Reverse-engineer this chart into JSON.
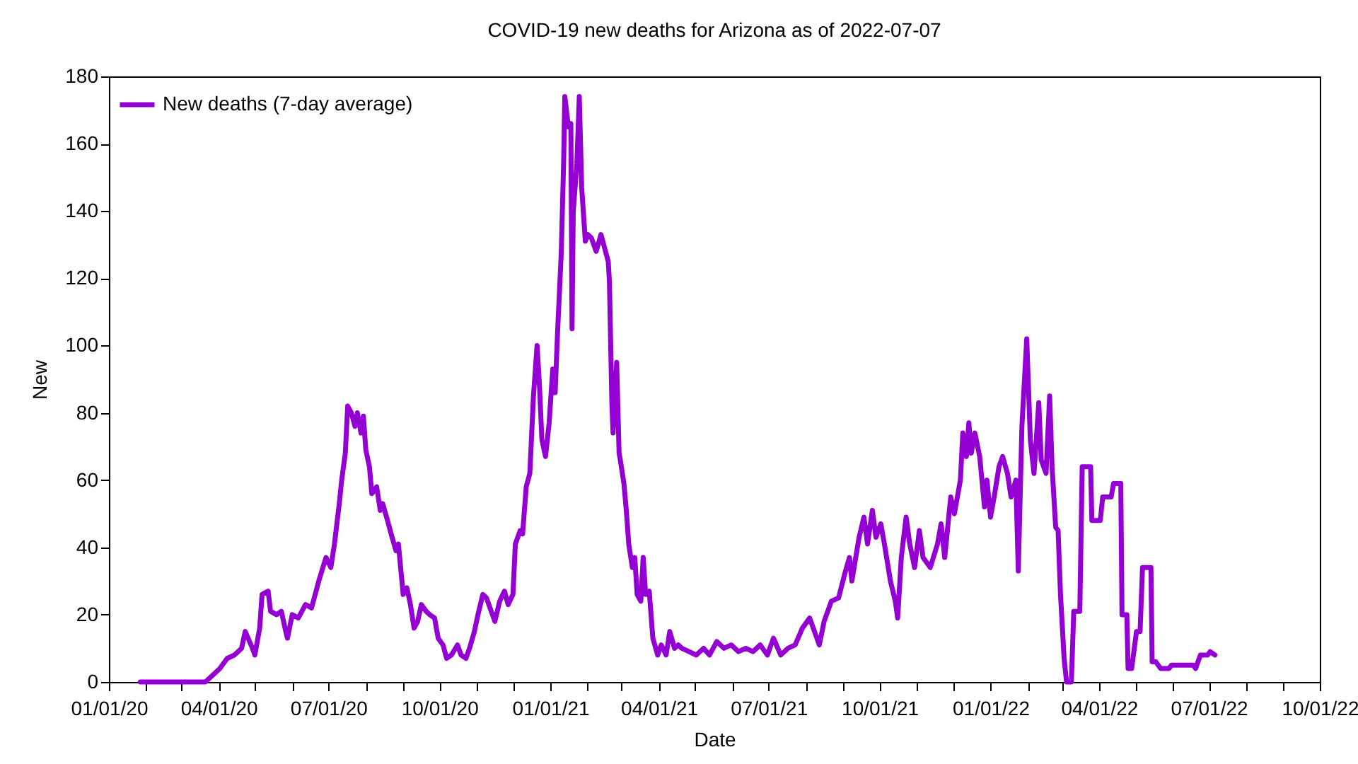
{
  "chart_data": {
    "type": "line",
    "title": "COVID-19 new deaths for Arizona as of 2022-07-07",
    "xlabel": "Date",
    "ylabel": "New",
    "x": [
      "2020-01-27",
      "2020-03-21",
      "2020-03-27",
      "2020-04-02",
      "2020-04-08",
      "2020-04-14",
      "2020-04-20",
      "2020-04-23",
      "2020-04-29",
      "2020-05-01",
      "2020-05-05",
      "2020-05-07",
      "2020-05-12",
      "2020-05-14",
      "2020-05-19",
      "2020-05-23",
      "2020-05-26",
      "2020-05-28",
      "2020-06-01",
      "2020-06-06",
      "2020-06-12",
      "2020-06-17",
      "2020-06-23",
      "2020-06-29",
      "2020-07-03",
      "2020-07-06",
      "2020-07-10",
      "2020-07-12",
      "2020-07-15",
      "2020-07-17",
      "2020-07-20",
      "2020-07-23",
      "2020-07-25",
      "2020-07-28",
      "2020-07-30",
      "2020-08-01",
      "2020-08-04",
      "2020-08-06",
      "2020-08-10",
      "2020-08-13",
      "2020-08-15",
      "2020-08-19",
      "2020-08-22",
      "2020-08-26",
      "2020-08-28",
      "2020-09-01",
      "2020-09-04",
      "2020-09-07",
      "2020-09-10",
      "2020-09-13",
      "2020-09-16",
      "2020-09-20",
      "2020-09-23",
      "2020-09-27",
      "2020-09-30",
      "2020-10-04",
      "2020-10-07",
      "2020-10-11",
      "2020-10-16",
      "2020-10-19",
      "2020-10-23",
      "2020-10-26",
      "2020-10-30",
      "2020-11-02",
      "2020-11-06",
      "2020-11-09",
      "2020-11-13",
      "2020-11-16",
      "2020-11-20",
      "2020-11-24",
      "2020-11-27",
      "2020-12-01",
      "2020-12-03",
      "2020-12-07",
      "2020-12-09",
      "2020-12-12",
      "2020-12-15",
      "2020-12-18",
      "2020-12-21",
      "2020-12-23",
      "2020-12-25",
      "2020-12-28",
      "2020-12-31",
      "2021-01-03",
      "2021-01-05",
      "2021-01-07",
      "2021-01-10",
      "2021-01-12",
      "2021-01-13",
      "2021-01-16",
      "2021-01-18",
      "2021-01-19",
      "2021-01-20",
      "2021-01-23",
      "2021-01-25",
      "2021-01-27",
      "2021-01-30",
      "2021-02-01",
      "2021-02-04",
      "2021-02-08",
      "2021-02-12",
      "2021-02-15",
      "2021-02-18",
      "2021-02-19",
      "2021-02-21",
      "2021-02-22",
      "2021-02-25",
      "2021-02-27",
      "2021-02-28",
      "2021-03-03",
      "2021-03-05",
      "2021-03-07",
      "2021-03-10",
      "2021-03-12",
      "2021-03-14",
      "2021-03-17",
      "2021-03-19",
      "2021-03-21",
      "2021-03-24",
      "2021-03-27",
      "2021-03-31",
      "2021-04-03",
      "2021-04-07",
      "2021-04-10",
      "2021-04-14",
      "2021-04-17",
      "2021-04-20",
      "2021-04-26",
      "2021-05-02",
      "2021-05-08",
      "2021-05-13",
      "2021-05-19",
      "2021-05-25",
      "2021-05-31",
      "2021-06-06",
      "2021-06-12",
      "2021-06-18",
      "2021-06-24",
      "2021-06-30",
      "2021-07-05",
      "2021-07-11",
      "2021-07-17",
      "2021-07-23",
      "2021-07-29",
      "2021-08-04",
      "2021-08-07",
      "2021-08-12",
      "2021-08-16",
      "2021-08-22",
      "2021-08-28",
      "2021-09-02",
      "2021-09-06",
      "2021-09-08",
      "2021-09-14",
      "2021-09-18",
      "2021-09-21",
      "2021-09-25",
      "2021-09-28",
      "2021-10-02",
      "2021-10-05",
      "2021-10-10",
      "2021-10-14",
      "2021-10-16",
      "2021-10-19",
      "2021-10-23",
      "2021-10-26",
      "2021-10-30",
      "2021-11-03",
      "2021-11-06",
      "2021-11-12",
      "2021-11-18",
      "2021-11-21",
      "2021-11-24",
      "2021-11-29",
      "2021-12-02",
      "2021-12-07",
      "2021-12-09",
      "2021-12-12",
      "2021-12-14",
      "2021-12-16",
      "2021-12-19",
      "2021-12-23",
      "2021-12-27",
      "2021-12-29",
      "2022-01-01",
      "2022-01-04",
      "2022-01-08",
      "2022-01-11",
      "2022-01-15",
      "2022-01-18",
      "2022-01-22",
      "2022-01-24",
      "2022-01-27",
      "2022-01-29",
      "2022-01-31",
      "2022-02-03",
      "2022-02-06",
      "2022-02-10",
      "2022-02-12",
      "2022-02-16",
      "2022-02-19",
      "2022-02-21",
      "2022-02-24",
      "2022-02-26",
      "2022-02-28",
      "2022-03-03",
      "2022-03-05",
      "2022-03-09",
      "2022-03-11",
      "2022-03-16",
      "2022-03-18",
      "2022-03-25",
      "2022-03-26",
      "2022-04-02",
      "2022-04-04",
      "2022-04-11",
      "2022-04-13",
      "2022-04-19",
      "2022-04-20",
      "2022-04-24",
      "2022-04-25",
      "2022-04-28",
      "2022-05-02",
      "2022-05-05",
      "2022-05-07",
      "2022-05-14",
      "2022-05-15",
      "2022-05-18",
      "2022-05-22",
      "2022-05-29",
      "2022-05-31",
      "2022-06-06",
      "2022-06-12",
      "2022-06-18",
      "2022-06-20",
      "2022-06-24",
      "2022-06-30",
      "2022-07-02",
      "2022-07-06"
    ],
    "series": [
      {
        "name": "New deaths (7-day average)",
        "color": "#9400d3",
        "values": [
          0,
          0,
          2,
          4,
          7,
          8,
          10,
          15,
          10,
          8,
          16,
          26,
          27,
          21,
          20,
          21,
          16,
          13,
          20,
          19,
          23,
          22,
          30,
          37,
          34,
          41,
          53,
          60,
          68,
          82,
          80,
          76,
          80,
          74,
          79,
          69,
          64,
          56,
          58,
          51,
          53,
          48,
          44,
          39,
          41,
          26,
          28,
          23,
          16,
          18,
          23,
          21,
          20,
          19,
          13,
          11,
          7,
          8,
          11,
          8,
          7,
          10,
          15,
          20,
          26,
          25,
          21,
          18,
          24,
          27,
          23,
          26,
          41,
          45,
          44,
          58,
          62,
          85,
          100,
          88,
          72,
          67,
          77,
          93,
          86,
          104,
          127,
          154,
          174,
          165,
          166,
          105,
          140,
          154,
          174,
          147,
          131,
          133,
          132,
          128,
          133,
          129,
          125,
          119,
          83,
          74,
          95,
          68,
          66,
          59,
          51,
          41,
          34,
          37,
          26,
          24,
          37,
          26,
          27,
          13,
          8,
          11,
          8,
          15,
          10,
          11,
          10,
          9,
          8,
          10,
          8,
          12,
          10,
          11,
          9,
          10,
          9,
          11,
          8,
          13,
          8,
          10,
          11,
          16,
          19,
          16,
          11,
          18,
          24,
          25,
          32,
          37,
          30,
          43,
          49,
          41,
          51,
          43,
          47,
          41,
          30,
          24,
          19,
          37,
          49,
          41,
          34,
          45,
          37,
          34,
          41,
          47,
          37,
          55,
          50,
          60,
          74,
          67,
          77,
          68,
          74,
          67,
          52,
          60,
          49,
          55,
          64,
          67,
          62,
          55,
          60,
          33,
          76,
          89,
          102,
          72,
          62,
          83,
          66,
          62,
          85,
          64,
          46,
          45,
          26,
          7,
          0,
          0,
          21,
          21,
          64,
          64,
          48,
          48,
          55,
          55,
          59,
          59,
          20,
          20,
          4,
          4,
          15,
          15,
          34,
          34,
          6,
          6,
          4,
          4,
          5,
          5,
          5,
          5,
          4,
          8,
          8,
          9,
          8
        ]
      }
    ],
    "xlim": [
      "2020-01-01",
      "2022-10-01"
    ],
    "xticks": [
      {
        "value": "2020-01-01",
        "label": "01/01/20"
      },
      {
        "value": "2020-02-01",
        "label": null
      },
      {
        "value": "2020-03-01",
        "label": null
      },
      {
        "value": "2020-04-01",
        "label": "04/01/20"
      },
      {
        "value": "2020-05-01",
        "label": null
      },
      {
        "value": "2020-06-01",
        "label": null
      },
      {
        "value": "2020-07-01",
        "label": "07/01/20"
      },
      {
        "value": "2020-08-01",
        "label": null
      },
      {
        "value": "2020-09-01",
        "label": null
      },
      {
        "value": "2020-10-01",
        "label": "10/01/20"
      },
      {
        "value": "2020-11-01",
        "label": null
      },
      {
        "value": "2020-12-01",
        "label": null
      },
      {
        "value": "2021-01-01",
        "label": "01/01/21"
      },
      {
        "value": "2021-02-01",
        "label": null
      },
      {
        "value": "2021-03-01",
        "label": null
      },
      {
        "value": "2021-04-01",
        "label": "04/01/21"
      },
      {
        "value": "2021-05-01",
        "label": null
      },
      {
        "value": "2021-06-01",
        "label": null
      },
      {
        "value": "2021-07-01",
        "label": "07/01/21"
      },
      {
        "value": "2021-08-01",
        "label": null
      },
      {
        "value": "2021-09-01",
        "label": null
      },
      {
        "value": "2021-10-01",
        "label": "10/01/21"
      },
      {
        "value": "2021-11-01",
        "label": null
      },
      {
        "value": "2021-12-01",
        "label": null
      },
      {
        "value": "2022-01-01",
        "label": "01/01/22"
      },
      {
        "value": "2022-02-01",
        "label": null
      },
      {
        "value": "2022-03-01",
        "label": null
      },
      {
        "value": "2022-04-01",
        "label": "04/01/22"
      },
      {
        "value": "2022-05-01",
        "label": null
      },
      {
        "value": "2022-06-01",
        "label": null
      },
      {
        "value": "2022-07-01",
        "label": "07/01/22"
      },
      {
        "value": "2022-08-01",
        "label": null
      },
      {
        "value": "2022-09-01",
        "label": null
      },
      {
        "value": "2022-10-01",
        "label": "10/01/22"
      }
    ],
    "ylim": [
      0,
      180
    ],
    "yticks": [
      0,
      20,
      40,
      60,
      80,
      100,
      120,
      140,
      160,
      180
    ],
    "grid": false,
    "legend": "top left",
    "marker": "none",
    "line_style": "solid"
  }
}
